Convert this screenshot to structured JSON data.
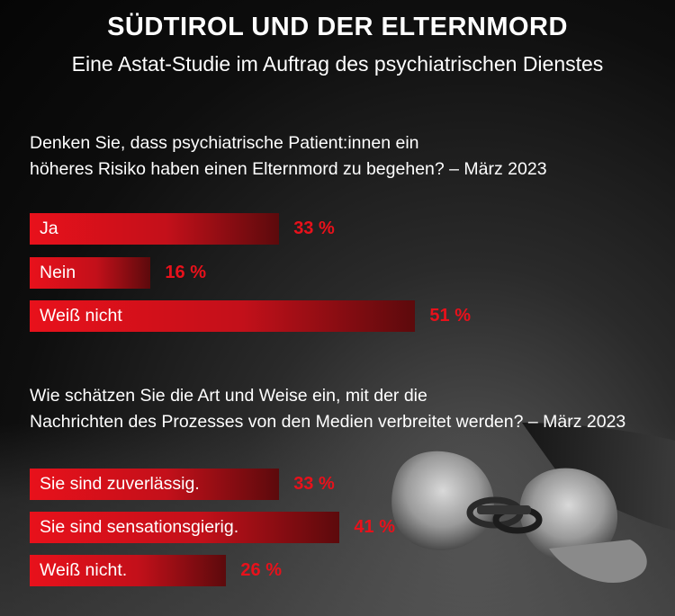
{
  "title": "SÜDTIROL UND DER ELTERNMORD",
  "subtitle": "Eine Astat-Studie im Auftrag des psychiatrischen Dienstes",
  "chart_data": [
    {
      "type": "bar",
      "question_lines": [
        "Denken Sie, dass psychiatrische Patient:innen ein",
        "höheres Risiko haben einen Elternmord zu begehen? – März 2023"
      ],
      "categories": [
        "Ja",
        "Nein",
        "Weiß nicht"
      ],
      "values": [
        33,
        16,
        51
      ],
      "value_labels": [
        "33 %",
        "16 %",
        "51 %"
      ]
    },
    {
      "type": "bar",
      "question_lines": [
        "Wie schätzen Sie die Art und Weise ein, mit der die",
        "Nachrichten des Prozesses von den Medien verbreitet werden? – März 2023"
      ],
      "categories": [
        "Sie sind zuverlässig.",
        "Sie sind sensationsgierig.",
        "Weiß nicht."
      ],
      "values": [
        33,
        41,
        26
      ],
      "value_labels": [
        "33 %",
        "41 %",
        "26 %"
      ]
    }
  ],
  "colors": {
    "accent": "#e8111b",
    "background": "#0e0e0e"
  }
}
